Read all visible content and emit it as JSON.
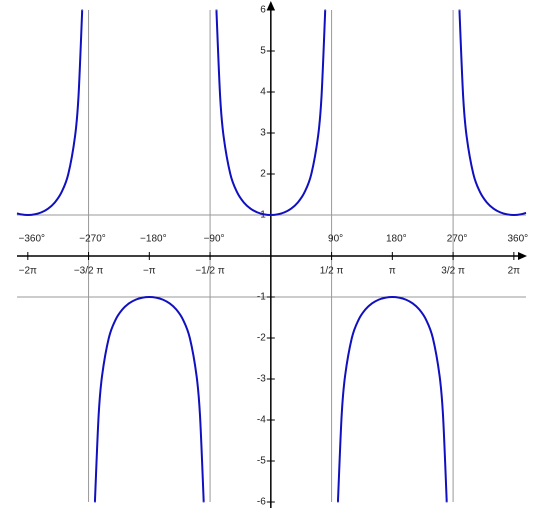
{
  "chart_data": {
    "type": "line",
    "xlim": [
      -376,
      378
    ],
    "ylim": [
      -6,
      6
    ],
    "xticks": [
      {
        "value": -360,
        "label": "−2π"
      },
      {
        "value": -270,
        "label": "−3/2 π"
      },
      {
        "value": -180,
        "label": "−π"
      },
      {
        "value": -90,
        "label": "−1/2 π"
      },
      {
        "value": 90,
        "label": "1/2 π"
      },
      {
        "value": 180,
        "label": "π"
      },
      {
        "value": 270,
        "label": "3/2 π"
      },
      {
        "value": 360,
        "label": "2π"
      }
    ],
    "xticks_degrees": [
      {
        "value": -360,
        "label": "−360°"
      },
      {
        "value": -270,
        "label": "−270°"
      },
      {
        "value": -180,
        "label": "−180°"
      },
      {
        "value": -90,
        "label": "−90°"
      },
      {
        "value": 90,
        "label": "90°"
      },
      {
        "value": 180,
        "label": "180°"
      },
      {
        "value": 270,
        "label": "270°"
      },
      {
        "value": 360,
        "label": "360°"
      }
    ],
    "yticks": [
      -6,
      -5,
      -4,
      -3,
      -2,
      -1,
      1,
      2,
      3,
      4,
      5,
      6
    ],
    "hlines": [
      1,
      -1
    ],
    "vlines": [
      -270,
      -90,
      90,
      270
    ],
    "x": [
      -376,
      -370,
      -360,
      -350,
      -340,
      -330,
      -320,
      -310,
      -300,
      -290,
      -285,
      -280,
      -279.6,
      -270,
      -260.4,
      -260,
      -255,
      -250,
      -240,
      -230,
      -220,
      -210,
      -200,
      -190,
      -180,
      -170,
      -160,
      -150,
      -140,
      -130,
      -120,
      -110,
      -105,
      -100,
      -99.6,
      -90,
      -80.4,
      -80,
      -75,
      -70,
      -60,
      -50,
      -40,
      -30,
      -20,
      -10,
      0,
      10,
      20,
      30,
      40,
      50,
      60,
      70,
      75,
      80,
      80.4,
      90,
      99.6,
      100,
      105,
      110,
      120,
      130,
      140,
      150,
      160,
      170,
      180,
      190,
      200,
      210,
      220,
      230,
      240,
      250,
      255,
      260,
      260.4,
      270,
      279.6,
      280,
      285,
      290,
      300,
      310,
      320,
      330,
      340,
      350,
      360,
      370,
      378
    ],
    "series": [
      {
        "color": "#1010c0",
        "values": [
          1.0403,
          1.0154,
          1,
          1.0154,
          1.0642,
          1.1547,
          1.3054,
          1.5557,
          2,
          2.9238,
          3.8637,
          5.7588,
          5.996,
          null,
          -5.996,
          -5.7588,
          -3.8637,
          -2.9238,
          -2,
          -1.5557,
          -1.3054,
          -1.1547,
          -1.0642,
          -1.0154,
          -1,
          -1.0154,
          -1.0642,
          -1.1547,
          -1.3054,
          -1.5557,
          -2,
          -2.9238,
          -3.8637,
          -5.7588,
          -5.996,
          null,
          5.996,
          5.7588,
          3.8637,
          2.9238,
          2,
          1.5557,
          1.3054,
          1.1547,
          1.0642,
          1.0154,
          1,
          1.0154,
          1.0642,
          1.1547,
          1.3054,
          1.5557,
          2,
          2.9238,
          3.8637,
          5.7588,
          5.996,
          null,
          -5.996,
          -5.7588,
          -3.8637,
          -2.9238,
          -2,
          -1.5557,
          -1.3054,
          -1.1547,
          -1.0642,
          -1.0154,
          -1,
          -1.0154,
          -1.0642,
          -1.1547,
          -1.3054,
          -1.5557,
          -2,
          -2.9238,
          -3.8637,
          -5.7588,
          -5.996,
          null,
          5.996,
          5.7588,
          3.8637,
          2.9238,
          2,
          1.5557,
          1.3054,
          1.1547,
          1.0642,
          1.0154,
          1,
          1.0154,
          1.0515
        ]
      }
    ]
  }
}
